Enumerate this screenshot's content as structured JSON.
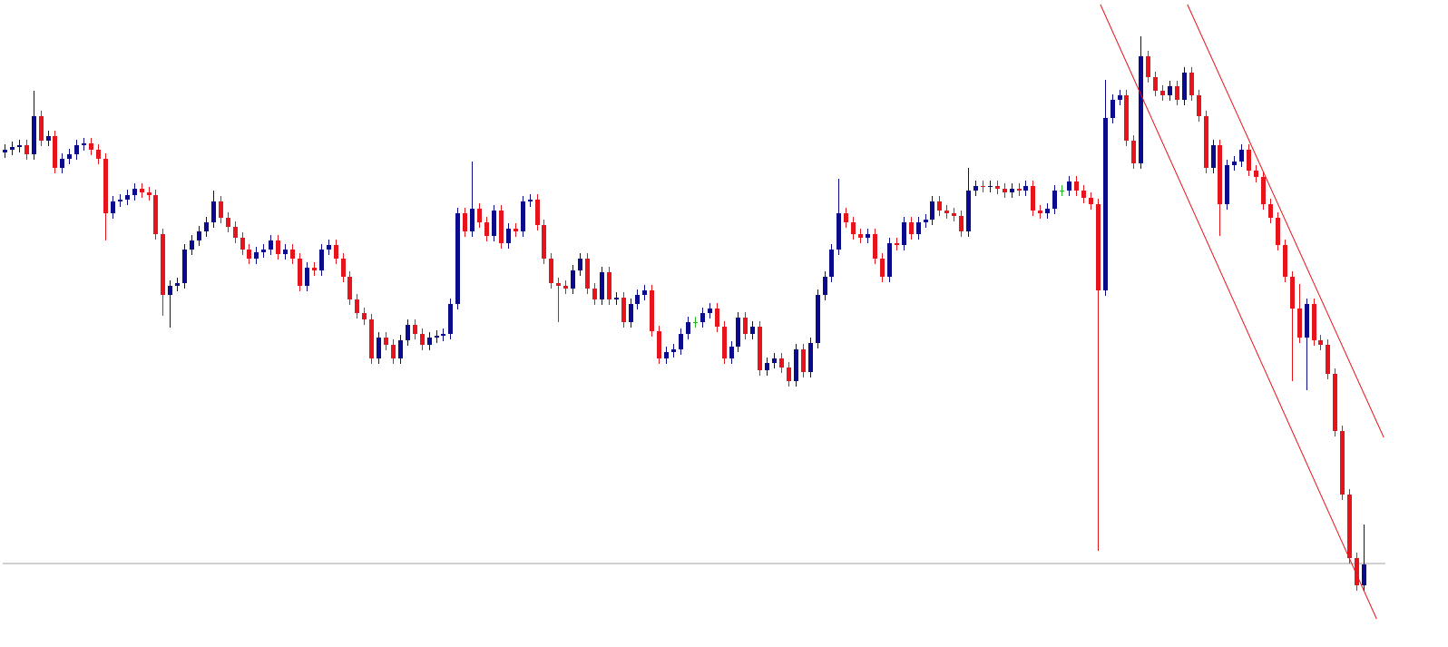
{
  "chart_data": {
    "type": "candlestick",
    "up_color": "#0a0a8c",
    "down_color": "#e8141c",
    "doji_color": "#22bb22",
    "ylim": [
      0,
      713
    ],
    "open": [
      545,
      548,
      551,
      553,
      543,
      585,
      558,
      563,
      528,
      538,
      543,
      553,
      555,
      548,
      538,
      478,
      491,
      493,
      498,
      505,
      501,
      498,
      455,
      388,
      398,
      401,
      438,
      448,
      458,
      468,
      491,
      473,
      463,
      451,
      438,
      428,
      435,
      438,
      448,
      433,
      438,
      428,
      398,
      418,
      415,
      438,
      443,
      428,
      408,
      383,
      368,
      361,
      318,
      341,
      333,
      318,
      338,
      355,
      345,
      333,
      341,
      343,
      345,
      378,
      478,
      458,
      483,
      468,
      453,
      481,
      445,
      461,
      458,
      491,
      493,
      465,
      428,
      401,
      398,
      395,
      415,
      428,
      395,
      383,
      413,
      383,
      385,
      358,
      378,
      388,
      393,
      348,
      318,
      325,
      328,
      345,
      358,
      358,
      368,
      373,
      353,
      318,
      331,
      363,
      345,
      353,
      305,
      313,
      318,
      308,
      293,
      328,
      303,
      335,
      388,
      408,
      438,
      478,
      468,
      455,
      451,
      455,
      428,
      408,
      445,
      443,
      468,
      455,
      468,
      471,
      491,
      481,
      478,
      475,
      458,
      503,
      508,
      507,
      508,
      505,
      501,
      505,
      503,
      508,
      481,
      478,
      483,
      503,
      503,
      513,
      503,
      495,
      488,
      393,
      583,
      603,
      608,
      558,
      533,
      651,
      628,
      613,
      608,
      618,
      603,
      633,
      608,
      585,
      528,
      553,
      488,
      531,
      535,
      548,
      525,
      518,
      488,
      473,
      443,
      408,
      373,
      341,
      378,
      338,
      333,
      301,
      238,
      168,
      98,
      68
    ],
    "high": [
      554,
      557,
      559,
      559,
      613,
      591,
      569,
      569,
      544,
      549,
      559,
      561,
      561,
      554,
      544,
      497,
      499,
      504,
      511,
      511,
      507,
      504,
      461,
      404,
      407,
      444,
      454,
      464,
      474,
      503,
      497,
      479,
      469,
      457,
      444,
      441,
      444,
      454,
      454,
      444,
      444,
      434,
      424,
      424,
      444,
      449,
      449,
      434,
      414,
      389,
      374,
      367,
      347,
      347,
      339,
      344,
      361,
      361,
      351,
      347,
      349,
      351,
      384,
      484,
      484,
      535,
      489,
      474,
      487,
      487,
      467,
      467,
      497,
      499,
      499,
      471,
      434,
      407,
      404,
      421,
      434,
      434,
      401,
      419,
      419,
      391,
      391,
      384,
      394,
      399,
      399,
      354,
      331,
      334,
      351,
      364,
      364,
      374,
      379,
      379,
      359,
      337,
      369,
      369,
      359,
      359,
      319,
      324,
      324,
      314,
      334,
      334,
      341,
      394,
      414,
      444,
      516,
      484,
      474,
      461,
      461,
      461,
      434,
      451,
      451,
      474,
      474,
      474,
      477,
      497,
      497,
      487,
      484,
      481,
      528,
      514,
      514,
      514,
      514,
      511,
      511,
      511,
      514,
      514,
      487,
      489,
      509,
      509,
      519,
      519,
      509,
      501,
      494,
      625,
      609,
      614,
      614,
      564,
      673,
      657,
      634,
      619,
      624,
      624,
      639,
      639,
      614,
      591,
      559,
      559,
      537,
      541,
      554,
      554,
      531,
      524,
      494,
      479,
      449,
      414,
      400,
      384,
      384,
      344,
      339,
      307,
      244,
      174,
      104,
      135
    ],
    "low": [
      539,
      542,
      545,
      537,
      537,
      552,
      552,
      522,
      522,
      532,
      537,
      547,
      542,
      532,
      448,
      472,
      485,
      487,
      492,
      495,
      492,
      449,
      365,
      352,
      392,
      395,
      432,
      442,
      452,
      462,
      467,
      457,
      445,
      432,
      422,
      422,
      429,
      432,
      427,
      427,
      422,
      392,
      392,
      409,
      409,
      432,
      422,
      402,
      377,
      362,
      355,
      312,
      312,
      327,
      312,
      312,
      332,
      339,
      327,
      327,
      335,
      337,
      339,
      372,
      452,
      452,
      462,
      447,
      447,
      439,
      439,
      452,
      452,
      485,
      459,
      422,
      395,
      358,
      389,
      389,
      409,
      389,
      377,
      377,
      377,
      377,
      352,
      352,
      372,
      382,
      342,
      312,
      312,
      319,
      322,
      339,
      352,
      352,
      362,
      347,
      312,
      312,
      325,
      339,
      339,
      299,
      299,
      307,
      302,
      287,
      287,
      297,
      297,
      329,
      382,
      402,
      432,
      462,
      449,
      445,
      445,
      422,
      402,
      402,
      437,
      437,
      449,
      449,
      462,
      465,
      475,
      472,
      469,
      452,
      452,
      497,
      501,
      501,
      499,
      495,
      495,
      497,
      497,
      475,
      472,
      472,
      477,
      497,
      497,
      497,
      489,
      482,
      106,
      387,
      577,
      597,
      552,
      527,
      527,
      622,
      607,
      602,
      602,
      597,
      597,
      602,
      579,
      522,
      522,
      453,
      482,
      525,
      529,
      519,
      512,
      482,
      467,
      437,
      402,
      293,
      335,
      283,
      332,
      327,
      295,
      232,
      162,
      92,
      62,
      62
    ],
    "close": [
      548,
      551,
      553,
      543,
      585,
      558,
      563,
      528,
      538,
      543,
      553,
      555,
      548,
      538,
      478,
      491,
      493,
      498,
      505,
      501,
      498,
      455,
      388,
      398,
      401,
      438,
      448,
      458,
      468,
      491,
      473,
      463,
      451,
      438,
      428,
      435,
      438,
      448,
      433,
      438,
      428,
      398,
      418,
      415,
      438,
      443,
      428,
      408,
      383,
      368,
      361,
      318,
      341,
      333,
      318,
      338,
      355,
      345,
      333,
      341,
      343,
      345,
      378,
      478,
      458,
      483,
      468,
      453,
      481,
      445,
      461,
      458,
      491,
      493,
      465,
      428,
      401,
      398,
      395,
      415,
      428,
      395,
      383,
      413,
      383,
      385,
      358,
      378,
      388,
      393,
      348,
      318,
      325,
      328,
      345,
      358,
      358,
      368,
      373,
      353,
      318,
      331,
      363,
      345,
      353,
      305,
      313,
      318,
      308,
      293,
      328,
      303,
      335,
      388,
      408,
      438,
      478,
      468,
      455,
      451,
      455,
      428,
      408,
      445,
      443,
      468,
      455,
      468,
      471,
      491,
      481,
      478,
      475,
      458,
      503,
      508,
      507,
      508,
      505,
      501,
      505,
      503,
      508,
      481,
      478,
      483,
      503,
      503,
      513,
      503,
      495,
      488,
      393,
      583,
      603,
      608,
      558,
      533,
      651,
      628,
      613,
      608,
      618,
      603,
      633,
      608,
      585,
      528,
      553,
      488,
      531,
      535,
      548,
      525,
      518,
      488,
      473,
      443,
      408,
      373,
      341,
      378,
      338,
      333,
      301,
      238,
      168,
      98,
      68,
      91
    ],
    "hline": {
      "value": 92,
      "color": "#a0a0a0"
    },
    "trendlines": [
      {
        "x": [
          152.4,
          190.8
        ],
        "y": [
          708,
          31
        ],
        "color": "#e8141c"
      },
      {
        "x": [
          164.5,
          191.8
        ],
        "y": [
          708,
          231
        ],
        "color": "#e8141c"
      }
    ]
  }
}
